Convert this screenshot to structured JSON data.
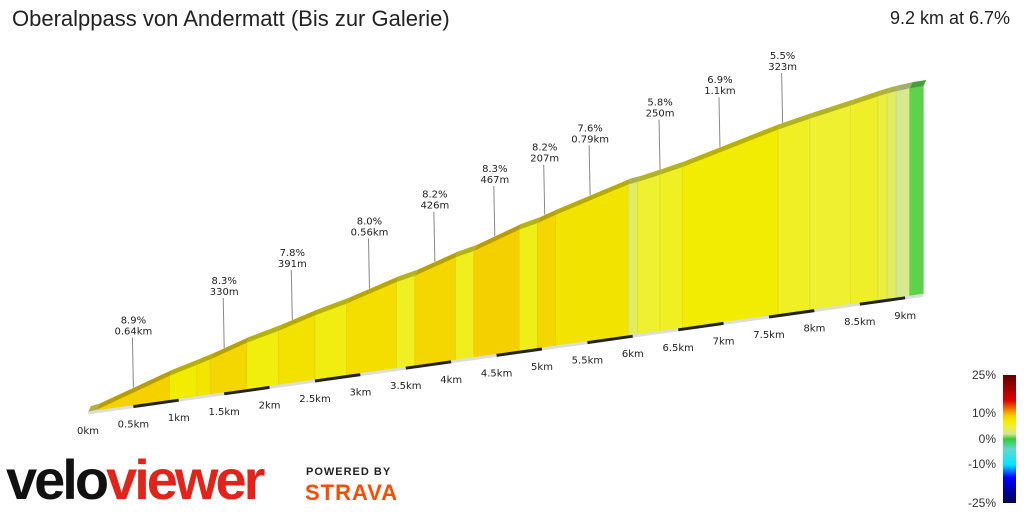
{
  "header": {
    "title": "Oberalppass von Andermatt (Bis zur Galerie)",
    "summary": "9.2 km at 6.7%"
  },
  "branding": {
    "logo_velo": "velo",
    "logo_viewer": "viewer",
    "powered_by": "POWERED BY",
    "strava": "STRAVA",
    "colors": {
      "velo": "#111111",
      "viewer": "#e2231a",
      "strava": "#fc4c02"
    }
  },
  "legend": {
    "labels": [
      "25%",
      "10%",
      "0%",
      "-10%",
      "-25%"
    ],
    "stops": [
      [
        -25,
        "#000050"
      ],
      [
        -15,
        "#0000ff"
      ],
      [
        -10,
        "#00e8ff"
      ],
      [
        -4,
        "#60d8d0"
      ],
      [
        0,
        "#33cc33"
      ],
      [
        2,
        "#d6e890"
      ],
      [
        5,
        "#eef030"
      ],
      [
        7,
        "#f2ec00"
      ],
      [
        9,
        "#f5d000"
      ],
      [
        11,
        "#f09000"
      ],
      [
        15,
        "#e00000"
      ],
      [
        25,
        "#600000"
      ]
    ]
  },
  "chart_data": {
    "type": "area",
    "xlabel": "",
    "ylabel": "",
    "x_ticks": [
      "0km",
      "0.5km",
      "1km",
      "1.5km",
      "2km",
      "2.5km",
      "3km",
      "3.5km",
      "4km",
      "4.5km",
      "5km",
      "5.5km",
      "6km",
      "6.5km",
      "7km",
      "7.5km",
      "8km",
      "8.5km",
      "9km"
    ],
    "segments": [
      {
        "start_km": 0,
        "end_km": 0.1,
        "gradient": 4.0
      },
      {
        "start_km": 0.1,
        "end_km": 0.9,
        "gradient": 8.9
      },
      {
        "start_km": 0.9,
        "end_km": 1.2,
        "gradient": 7.0
      },
      {
        "start_km": 1.2,
        "end_km": 1.35,
        "gradient": 7.5
      },
      {
        "start_km": 1.35,
        "end_km": 1.75,
        "gradient": 8.6
      },
      {
        "start_km": 1.75,
        "end_km": 2.1,
        "gradient": 6.5
      },
      {
        "start_km": 2.1,
        "end_km": 2.5,
        "gradient": 7.8
      },
      {
        "start_km": 2.5,
        "end_km": 2.85,
        "gradient": 6.3
      },
      {
        "start_km": 2.85,
        "end_km": 3.4,
        "gradient": 8.0
      },
      {
        "start_km": 3.4,
        "end_km": 3.6,
        "gradient": 5.5
      },
      {
        "start_km": 3.6,
        "end_km": 4.05,
        "gradient": 8.5
      },
      {
        "start_km": 4.05,
        "end_km": 4.25,
        "gradient": 5.8
      },
      {
        "start_km": 4.25,
        "end_km": 4.75,
        "gradient": 9.0
      },
      {
        "start_km": 4.75,
        "end_km": 4.95,
        "gradient": 6.0
      },
      {
        "start_km": 4.95,
        "end_km": 5.15,
        "gradient": 8.6
      },
      {
        "start_km": 5.15,
        "end_km": 5.95,
        "gradient": 7.6
      },
      {
        "start_km": 5.95,
        "end_km": 6.05,
        "gradient": 3.5
      },
      {
        "start_km": 6.05,
        "end_km": 6.3,
        "gradient": 5.0
      },
      {
        "start_km": 6.3,
        "end_km": 6.55,
        "gradient": 5.5
      },
      {
        "start_km": 6.55,
        "end_km": 7.6,
        "gradient": 6.9
      },
      {
        "start_km": 7.6,
        "end_km": 7.95,
        "gradient": 5.5
      },
      {
        "start_km": 7.95,
        "end_km": 8.4,
        "gradient": 5.0
      },
      {
        "start_km": 8.4,
        "end_km": 8.7,
        "gradient": 5.3
      },
      {
        "start_km": 8.7,
        "end_km": 8.8,
        "gradient": 4.5
      },
      {
        "start_km": 8.8,
        "end_km": 8.9,
        "gradient": 3.5
      },
      {
        "start_km": 8.9,
        "end_km": 9.05,
        "gradient": 2.0
      },
      {
        "start_km": 9.05,
        "end_km": 9.2,
        "gradient": 0.5
      }
    ],
    "annotations": [
      {
        "km": 0.5,
        "gradient": "8.9%",
        "length": "0.64km"
      },
      {
        "km": 1.5,
        "gradient": "8.3%",
        "length": "330m"
      },
      {
        "km": 2.25,
        "gradient": "7.8%",
        "length": "391m"
      },
      {
        "km": 3.1,
        "gradient": "8.0%",
        "length": "0.56km"
      },
      {
        "km": 3.82,
        "gradient": "8.2%",
        "length": "426m"
      },
      {
        "km": 4.48,
        "gradient": "8.3%",
        "length": "467m"
      },
      {
        "km": 5.03,
        "gradient": "8.2%",
        "length": "207m"
      },
      {
        "km": 5.53,
        "gradient": "7.6%",
        "length": "0.79km"
      },
      {
        "km": 6.3,
        "gradient": "5.8%",
        "length": "250m"
      },
      {
        "km": 6.96,
        "gradient": "6.9%",
        "length": "1.1km"
      },
      {
        "km": 7.65,
        "gradient": "5.5%",
        "length": "323m"
      }
    ]
  }
}
